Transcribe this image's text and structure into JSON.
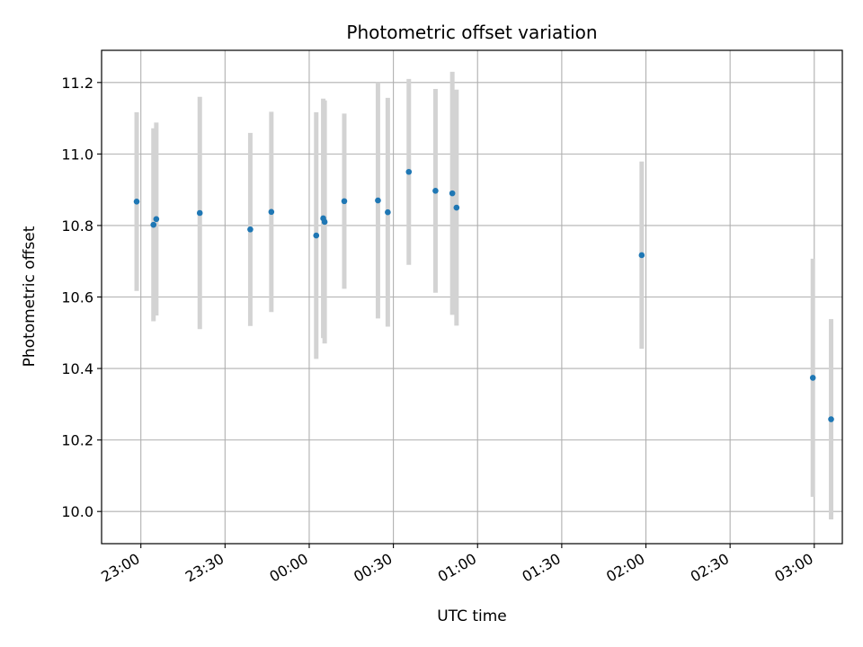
{
  "chart_data": {
    "type": "scatter",
    "title": "Photometric offset variation",
    "xlabel": "UTC time",
    "ylabel": "Photometric offset",
    "xlim": [
      "22:46",
      "03:10"
    ],
    "ylim": [
      9.91,
      11.29
    ],
    "x_ticks": [
      "23:00",
      "23:30",
      "00:00",
      "00:30",
      "01:00",
      "01:30",
      "02:00",
      "02:30",
      "03:00"
    ],
    "y_ticks": [
      "10.0",
      "10.2",
      "10.4",
      "10.6",
      "10.8",
      "11.0",
      "11.2"
    ],
    "grid": true,
    "colors": {
      "point": "#1f77b4",
      "errorbar": "#d3d3d3",
      "grid": "#b0b0b0"
    },
    "series": [
      {
        "points": [
          {
            "x": "22:58:30",
            "y": 10.867,
            "err": 0.25
          },
          {
            "x": "23:04:30",
            "y": 10.802,
            "err": 0.27
          },
          {
            "x": "23:05:30",
            "y": 10.818,
            "err": 0.27
          },
          {
            "x": "23:21:00",
            "y": 10.835,
            "err": 0.325
          },
          {
            "x": "23:39:00",
            "y": 10.789,
            "err": 0.27
          },
          {
            "x": "23:46:30",
            "y": 10.838,
            "err": 0.28
          },
          {
            "x": "00:02:30",
            "y": 10.772,
            "err": 0.345
          },
          {
            "x": "00:05:00",
            "y": 10.82,
            "err": 0.335
          },
          {
            "x": "00:05:30",
            "y": 10.81,
            "err": 0.34
          },
          {
            "x": "00:12:30",
            "y": 10.868,
            "err": 0.245
          },
          {
            "x": "00:24:30",
            "y": 10.87,
            "err": 0.33
          },
          {
            "x": "00:28:00",
            "y": 10.837,
            "err": 0.32
          },
          {
            "x": "00:35:30",
            "y": 10.95,
            "err": 0.26
          },
          {
            "x": "00:45:00",
            "y": 10.897,
            "err": 0.285
          },
          {
            "x": "00:51:00",
            "y": 10.89,
            "err": 0.34
          },
          {
            "x": "00:52:30",
            "y": 10.85,
            "err": 0.33
          },
          {
            "x": "01:58:30",
            "y": 10.717,
            "err": 0.262
          },
          {
            "x": "02:59:30",
            "y": 10.374,
            "err": 0.333
          },
          {
            "x": "03:06:00",
            "y": 10.258,
            "err": 0.28
          }
        ]
      }
    ]
  }
}
